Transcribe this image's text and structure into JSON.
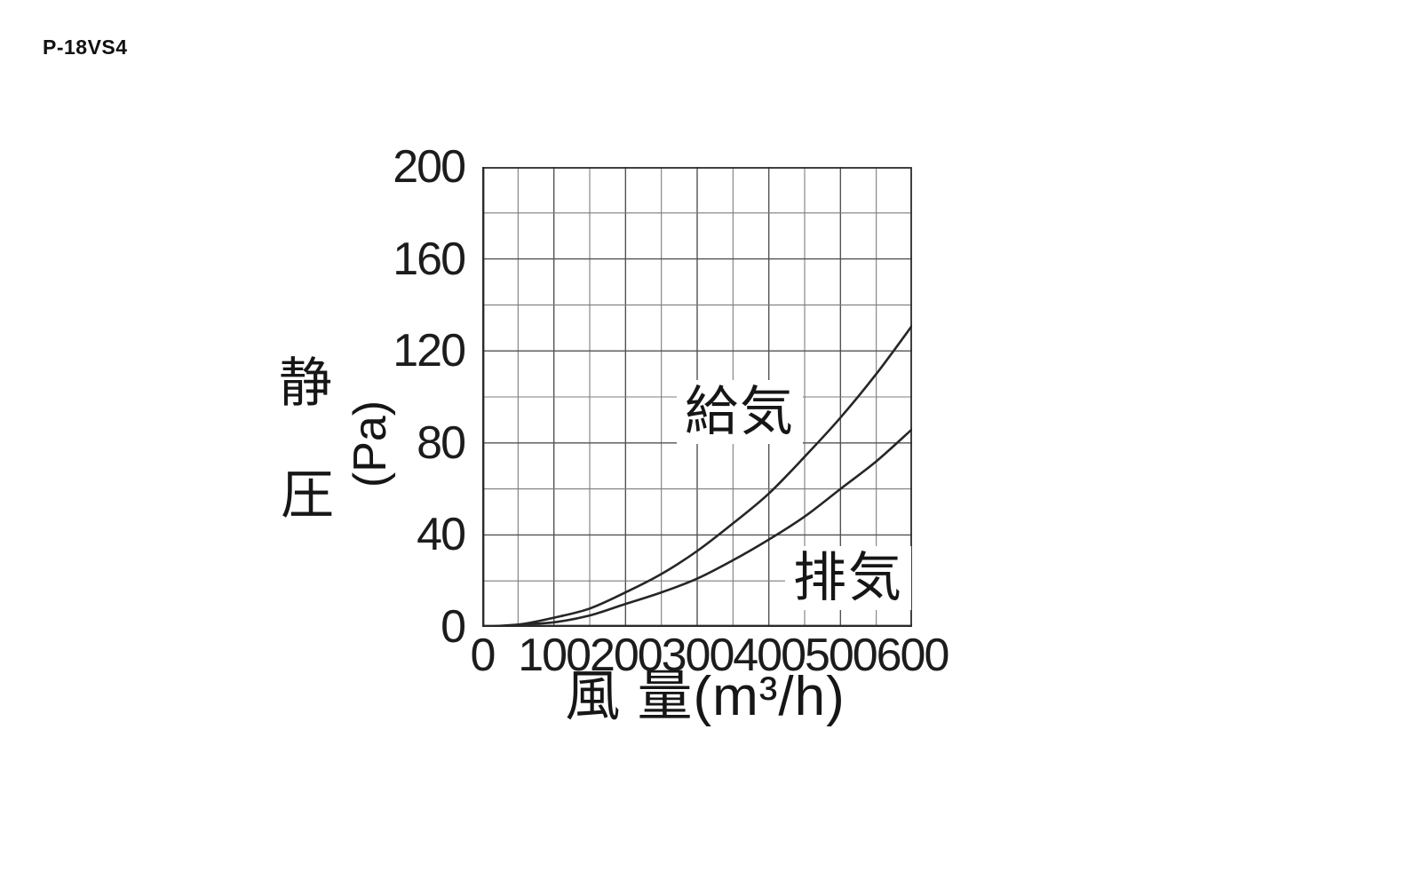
{
  "page": {
    "model_code": "P-18VS4"
  },
  "colors": {
    "background": "#ffffff",
    "text": "#1a1a1a",
    "grid_minor": "#7d7d7d",
    "grid_major": "#525252",
    "axis": "#2b2b2b",
    "curve": "#262626"
  },
  "chart_data": {
    "type": "line",
    "title": "P-18VS4",
    "xlabel": "風 量(m³/h)",
    "ylabel": "静圧(Pa)",
    "ylabel_line1": "静",
    "ylabel_line2": "圧",
    "ylabel_unit": "(Pa)",
    "xlim": [
      0,
      600
    ],
    "ylim": [
      0,
      200
    ],
    "x_minor_step": 50,
    "x_major_step": 100,
    "y_minor_step": 20,
    "y_major_step": 40,
    "grid": "on",
    "legend_position": "inline-labels",
    "x_ticks": [
      "0",
      "100",
      "200",
      "300",
      "400",
      "500",
      "600"
    ],
    "x_tick_values": [
      0,
      100,
      200,
      300,
      400,
      500,
      600
    ],
    "y_ticks": [
      "0",
      "40",
      "80",
      "120",
      "160",
      "200"
    ],
    "y_tick_values": [
      0,
      40,
      80,
      120,
      160,
      200
    ],
    "x": [
      0,
      50,
      100,
      150,
      200,
      250,
      300,
      350,
      400,
      450,
      500,
      550,
      600
    ],
    "series": [
      {
        "name": "給気",
        "role": "supply",
        "values": [
          0,
          1,
          4,
          8,
          15,
          23,
          33,
          45,
          58,
          74,
          91,
          110,
          131
        ]
      },
      {
        "name": "排気",
        "role": "exhaust",
        "values": [
          0,
          1,
          2,
          5,
          10,
          15,
          21,
          29,
          38,
          48,
          60,
          72,
          86
        ]
      }
    ]
  }
}
